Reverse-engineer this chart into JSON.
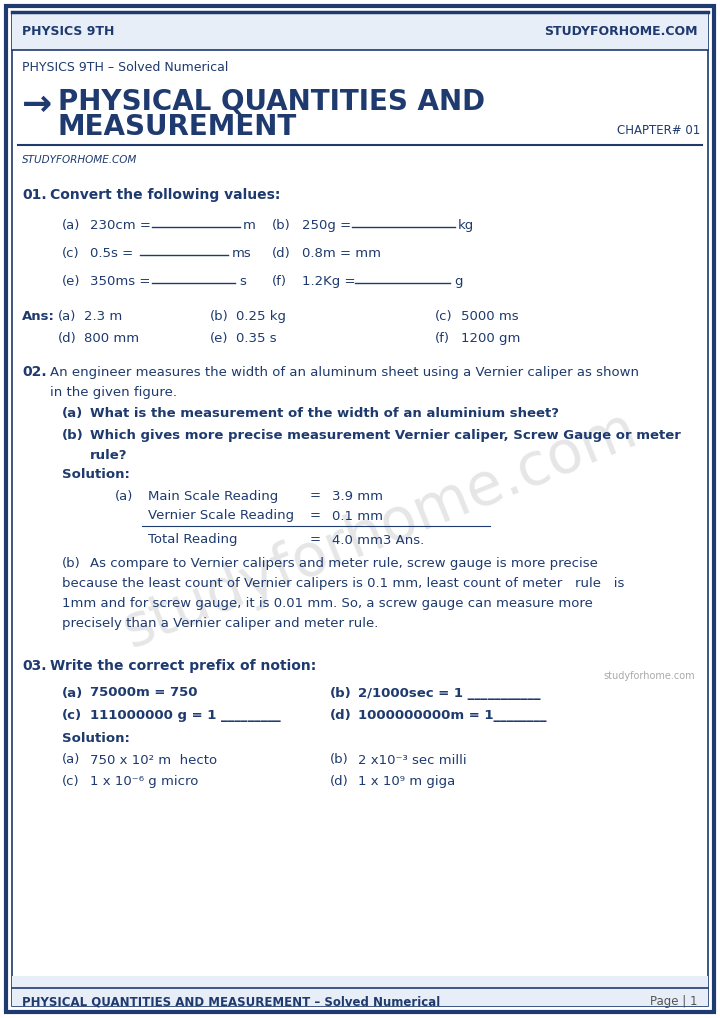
{
  "header_left": "PHYSICS 9TH",
  "header_right": "STUDYFORHOME.COM",
  "subtitle": "PHYSICS 9TH – Solved Numerical",
  "title_arrow": "→",
  "chapter": "CHAPTER# 01",
  "section_label": "STUDYFORHOME.COM",
  "footer_left": "PHYSICAL QUANTITIES AND MEASUREMENT – Solved Numerical",
  "footer_right": "Page | 1",
  "bg_color": "#ffffff",
  "border_color": "#1e3a6e",
  "title_color": "#1e3a6e",
  "body_color": "#1e3a6e",
  "header_bg": "#e8eef7",
  "footer_bg": "#e8eef7"
}
